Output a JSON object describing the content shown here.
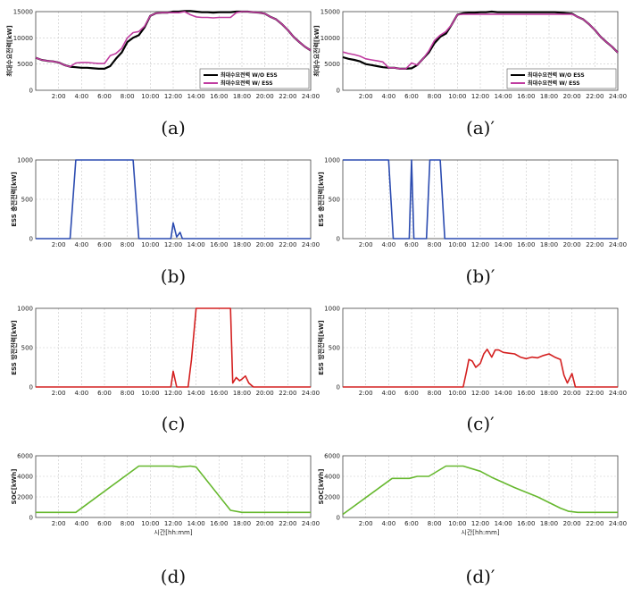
{
  "chart_data": [
    {
      "id": "a",
      "caption": "(a)",
      "type": "line",
      "ylabel": "최대수요전력[kW]",
      "xlabel": "",
      "xlim": [
        0,
        24
      ],
      "ylim": [
        0,
        15000
      ],
      "yticks": [
        0,
        5000,
        10000,
        15000
      ],
      "xticks": [
        "2:00",
        "4:00",
        "6:00",
        "8:00",
        "10:00",
        "12:00",
        "14:00",
        "16:00",
        "18:00",
        "20:00",
        "22:00",
        "24:00"
      ],
      "legend": {
        "placement": "bottom-right"
      },
      "series": [
        {
          "name": "최대수요전력 W/O ESS",
          "color": "#000000",
          "x": [
            0,
            0.5,
            1,
            1.5,
            2,
            2.5,
            3,
            3.5,
            4,
            4.5,
            5,
            5.5,
            6,
            6.5,
            7,
            7.5,
            8,
            8.5,
            9,
            9.5,
            10,
            10.5,
            11,
            11.5,
            12,
            12.5,
            13,
            13.5,
            14,
            14.5,
            15,
            15.5,
            16,
            16.5,
            17,
            17.5,
            18,
            18.5,
            19,
            19.5,
            20,
            20.5,
            21,
            21.5,
            22,
            22.5,
            23,
            23.5,
            24
          ],
          "y": [
            6200,
            5800,
            5600,
            5500,
            5300,
            4800,
            4500,
            4400,
            4300,
            4300,
            4200,
            4100,
            4100,
            4600,
            6000,
            7200,
            9200,
            10000,
            10500,
            12000,
            14200,
            14700,
            14800,
            14800,
            15000,
            15000,
            15100,
            15100,
            15000,
            14900,
            14900,
            14800,
            14900,
            14900,
            14900,
            15000,
            15000,
            15000,
            14900,
            14800,
            14600,
            14000,
            13500,
            12600,
            11500,
            10200,
            9200,
            8300,
            7600
          ]
        },
        {
          "name": "최대수요전력 W/ ESS",
          "color": "#c03ca0",
          "x": [
            0,
            0.5,
            1,
            1.5,
            2,
            2.5,
            3,
            3.5,
            4,
            4.5,
            5,
            5.5,
            6,
            6.5,
            7,
            7.5,
            8,
            8.5,
            9,
            9.5,
            10,
            10.5,
            11,
            11.5,
            12,
            12.5,
            13,
            13.5,
            14,
            14.5,
            15,
            15.5,
            16,
            16.5,
            17,
            17.5,
            18,
            18.5,
            19,
            19.5,
            20,
            20.5,
            21,
            21.5,
            22,
            22.5,
            23,
            23.5,
            24
          ],
          "y": [
            6200,
            5800,
            5600,
            5500,
            5300,
            4800,
            4500,
            5200,
            5300,
            5300,
            5200,
            5100,
            5100,
            6600,
            7000,
            8000,
            10000,
            11000,
            11200,
            12200,
            14200,
            14700,
            14800,
            14800,
            14800,
            14800,
            15000,
            14400,
            14000,
            13900,
            13900,
            13800,
            13900,
            13900,
            13900,
            14800,
            15000,
            15000,
            14900,
            14800,
            14600,
            14000,
            13500,
            12600,
            11500,
            10200,
            9200,
            8300,
            7600
          ]
        }
      ]
    },
    {
      "id": "a2",
      "caption": "(a)′",
      "type": "line",
      "ylabel": "최대수요전력[kW]",
      "xlabel": "",
      "xlim": [
        0,
        24
      ],
      "ylim": [
        0,
        15000
      ],
      "yticks": [
        0,
        5000,
        10000,
        15000
      ],
      "xticks": [
        "2:00",
        "4:00",
        "6:00",
        "8:00",
        "10:00",
        "12:00",
        "14:00",
        "16:00",
        "18:00",
        "20:00",
        "22:00",
        "24:00"
      ],
      "legend": {
        "placement": "bottom-right"
      },
      "series": [
        {
          "name": "최대수요전력 W/O ESS",
          "color": "#000000",
          "x": [
            0,
            0.5,
            1,
            1.5,
            2,
            2.5,
            3,
            3.5,
            4,
            4.5,
            5,
            5.5,
            6,
            6.5,
            7,
            7.5,
            8,
            8.5,
            9,
            9.5,
            10,
            10.5,
            11,
            11.5,
            12,
            12.5,
            13,
            13.5,
            14,
            14.5,
            15,
            15.5,
            16,
            16.5,
            17,
            17.5,
            18,
            18.5,
            19,
            19.5,
            20,
            20.5,
            21,
            21.5,
            22,
            22.5,
            23,
            23.5,
            24
          ],
          "y": [
            6300,
            6000,
            5800,
            5500,
            5000,
            4800,
            4600,
            4400,
            4300,
            4300,
            4100,
            4100,
            4200,
            4800,
            6000,
            7200,
            9000,
            10200,
            10800,
            12500,
            14400,
            14700,
            14800,
            14800,
            14900,
            14900,
            15000,
            14900,
            14900,
            14900,
            14900,
            14900,
            14900,
            14900,
            14900,
            14900,
            14900,
            14900,
            14800,
            14700,
            14600,
            14000,
            13500,
            12600,
            11500,
            10200,
            9200,
            8300,
            7200
          ]
        },
        {
          "name": "최대수요전력 W/ ESS",
          "color": "#c03ca0",
          "x": [
            0,
            0.5,
            1,
            1.5,
            2,
            2.5,
            3,
            3.5,
            4,
            4.5,
            5,
            5.5,
            6,
            6.5,
            7,
            7.5,
            8,
            8.5,
            9,
            9.5,
            10,
            10.5,
            11,
            11.5,
            12,
            12.5,
            13,
            13.5,
            14,
            14.5,
            15,
            15.5,
            16,
            16.5,
            17,
            17.5,
            18,
            18.5,
            19,
            19.5,
            20,
            20.5,
            21,
            21.5,
            22,
            22.5,
            23,
            23.5,
            24
          ],
          "y": [
            7300,
            7000,
            6800,
            6500,
            6000,
            5800,
            5600,
            5400,
            4300,
            4300,
            4100,
            4100,
            5200,
            4800,
            6000,
            7500,
            9500,
            10500,
            11200,
            12500,
            14400,
            14500,
            14500,
            14500,
            14500,
            14500,
            14500,
            14500,
            14500,
            14500,
            14500,
            14500,
            14500,
            14500,
            14500,
            14500,
            14500,
            14500,
            14500,
            14500,
            14500,
            14000,
            13500,
            12600,
            11500,
            10200,
            9200,
            8300,
            7200
          ]
        }
      ]
    },
    {
      "id": "b",
      "caption": "(b)",
      "type": "line",
      "ylabel": "ESS 충전전력[kW]",
      "xlabel": "",
      "xlim": [
        0,
        24
      ],
      "ylim": [
        0,
        1000
      ],
      "yticks": [
        0,
        500,
        1000
      ],
      "xticks": [
        "2:00",
        "4:00",
        "6:00",
        "8:00",
        "10:00",
        "12:00",
        "14:00",
        "16:00",
        "18:00",
        "20:00",
        "22:00",
        "24:00"
      ],
      "series": [
        {
          "name": "",
          "color": "#2b4bb0",
          "x": [
            0,
            3,
            3.2,
            3.5,
            8.5,
            9,
            9.2,
            11.8,
            12,
            12.3,
            12.6,
            12.8,
            13,
            24
          ],
          "y": [
            0,
            0,
            400,
            1000,
            1000,
            0,
            0,
            0,
            200,
            20,
            80,
            0,
            0,
            0
          ]
        }
      ]
    },
    {
      "id": "b2",
      "caption": "(b)′",
      "type": "line",
      "ylabel": "ESS 충전전력[kW]",
      "xlabel": "",
      "xlim": [
        0,
        24
      ],
      "ylim": [
        0,
        1000
      ],
      "yticks": [
        0,
        500,
        1000
      ],
      "xticks": [
        "2:00",
        "4:00",
        "6:00",
        "8:00",
        "10:00",
        "12:00",
        "14:00",
        "16:00",
        "18:00",
        "20:00",
        "22:00",
        "24:00"
      ],
      "series": [
        {
          "name": "",
          "color": "#2b4bb0",
          "x": [
            0,
            4,
            4.4,
            5.8,
            6,
            6.2,
            7.3,
            7.6,
            8.5,
            8.9,
            24
          ],
          "y": [
            1000,
            1000,
            0,
            0,
            1000,
            0,
            0,
            1000,
            1000,
            0,
            0
          ]
        }
      ]
    },
    {
      "id": "c",
      "caption": "(c)",
      "type": "line",
      "ylabel": "ESS 방전전력[kW]",
      "xlabel": "",
      "xlim": [
        0,
        24
      ],
      "ylim": [
        0,
        1000
      ],
      "yticks": [
        0,
        500,
        1000
      ],
      "xticks": [
        "2:00",
        "4:00",
        "6:00",
        "8:00",
        "10:00",
        "12:00",
        "14:00",
        "16:00",
        "18:00",
        "20:00",
        "22:00",
        "24:00"
      ],
      "series": [
        {
          "name": "",
          "color": "#d42020",
          "x": [
            0,
            11.8,
            12,
            12.3,
            13.3,
            13.6,
            14,
            17,
            17.2,
            17.5,
            17.8,
            18,
            18.3,
            18.6,
            19,
            24
          ],
          "y": [
            0,
            0,
            200,
            0,
            0,
            350,
            1000,
            1000,
            50,
            120,
            80,
            100,
            140,
            50,
            0,
            0
          ]
        }
      ]
    },
    {
      "id": "c2",
      "caption": "(c)′",
      "type": "line",
      "ylabel": "ESS 방전전력[kW]",
      "xlabel": "",
      "xlim": [
        0,
        24
      ],
      "ylim": [
        0,
        1000
      ],
      "yticks": [
        0,
        500,
        1000
      ],
      "xticks": [
        "2:00",
        "4:00",
        "6:00",
        "8:00",
        "10:00",
        "12:00",
        "14:00",
        "16:00",
        "18:00",
        "20:00",
        "22:00",
        "24:00"
      ],
      "series": [
        {
          "name": "",
          "color": "#d42020",
          "x": [
            0,
            10.5,
            10.8,
            11,
            11.3,
            11.6,
            12,
            12.3,
            12.6,
            13,
            13.3,
            13.6,
            14,
            14.5,
            15,
            15.5,
            16,
            16.5,
            17,
            17.5,
            18,
            18.5,
            19,
            19.3,
            19.6,
            20,
            20.3,
            24
          ],
          "y": [
            0,
            0,
            200,
            350,
            330,
            250,
            300,
            420,
            480,
            380,
            470,
            470,
            440,
            430,
            420,
            380,
            360,
            380,
            370,
            400,
            420,
            380,
            350,
            150,
            50,
            170,
            0,
            0
          ]
        }
      ]
    },
    {
      "id": "d",
      "caption": "(d)",
      "type": "line",
      "ylabel": "SOC[kWh]",
      "xlabel": "시간[hh:mm]",
      "xlim": [
        0,
        24
      ],
      "ylim": [
        0,
        6000
      ],
      "yticks": [
        0,
        2000,
        4000,
        6000
      ],
      "xticks": [
        "2:00",
        "4:00",
        "6:00",
        "8:00",
        "10:00",
        "12:00",
        "14:00",
        "16:00",
        "18:00",
        "20:00",
        "22:00",
        "24:00"
      ],
      "series": [
        {
          "name": "",
          "color": "#66b82e",
          "x": [
            0,
            3.5,
            9,
            12,
            12.5,
            13.5,
            14,
            17,
            18,
            24
          ],
          "y": [
            500,
            500,
            5000,
            5000,
            4900,
            5000,
            4900,
            700,
            500,
            500
          ]
        }
      ]
    },
    {
      "id": "d2",
      "caption": "(d)′",
      "type": "line",
      "ylabel": "SOC[kWh]",
      "xlabel": "시간[hh:mm]",
      "xlim": [
        0,
        24
      ],
      "ylim": [
        0,
        6000
      ],
      "yticks": [
        0,
        2000,
        4000,
        6000
      ],
      "xticks": [
        "2:00",
        "4:00",
        "6:00",
        "8:00",
        "10:00",
        "12:00",
        "14:00",
        "16:00",
        "18:00",
        "20:00",
        "22:00",
        "24:00"
      ],
      "series": [
        {
          "name": "",
          "color": "#66b82e",
          "x": [
            0,
            4.3,
            5.8,
            6.5,
            7.5,
            9,
            10.5,
            12,
            13,
            15,
            17,
            19,
            19.7,
            20.5,
            24
          ],
          "y": [
            300,
            3800,
            3800,
            4000,
            4000,
            5000,
            5000,
            4500,
            3900,
            2900,
            2000,
            900,
            600,
            500,
            500
          ]
        }
      ]
    }
  ]
}
